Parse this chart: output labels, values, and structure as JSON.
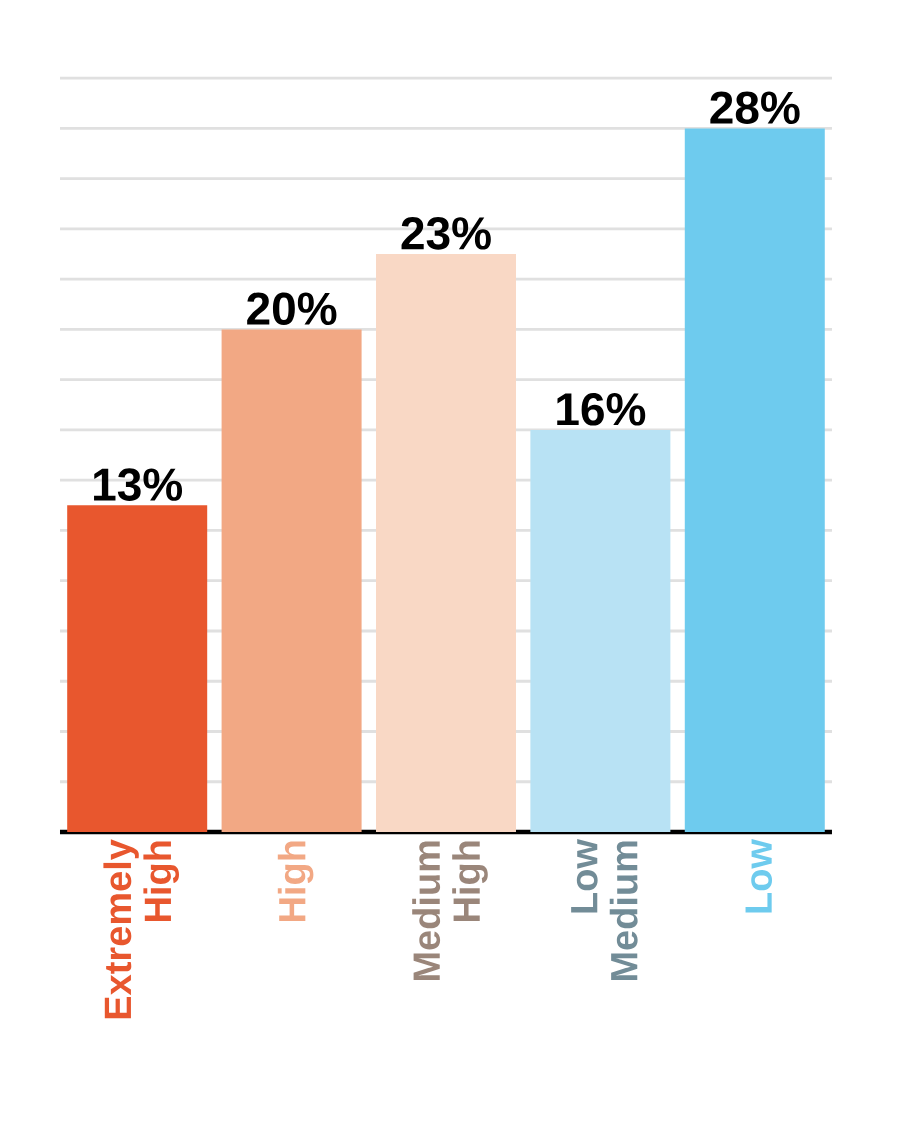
{
  "chart_data": {
    "type": "bar",
    "categories": [
      "Extremely High",
      "High",
      "Medium High",
      "Low Medium",
      "Low"
    ],
    "values": [
      13,
      20,
      23,
      16,
      28
    ],
    "value_labels": [
      "13%",
      "20%",
      "23%",
      "16%",
      "28%"
    ],
    "colors": [
      "#e8572e",
      "#f2a884",
      "#f9d8c5",
      "#b8e2f4",
      "#6ecbee"
    ],
    "grid": "y",
    "tick_labels": "x"
  }
}
